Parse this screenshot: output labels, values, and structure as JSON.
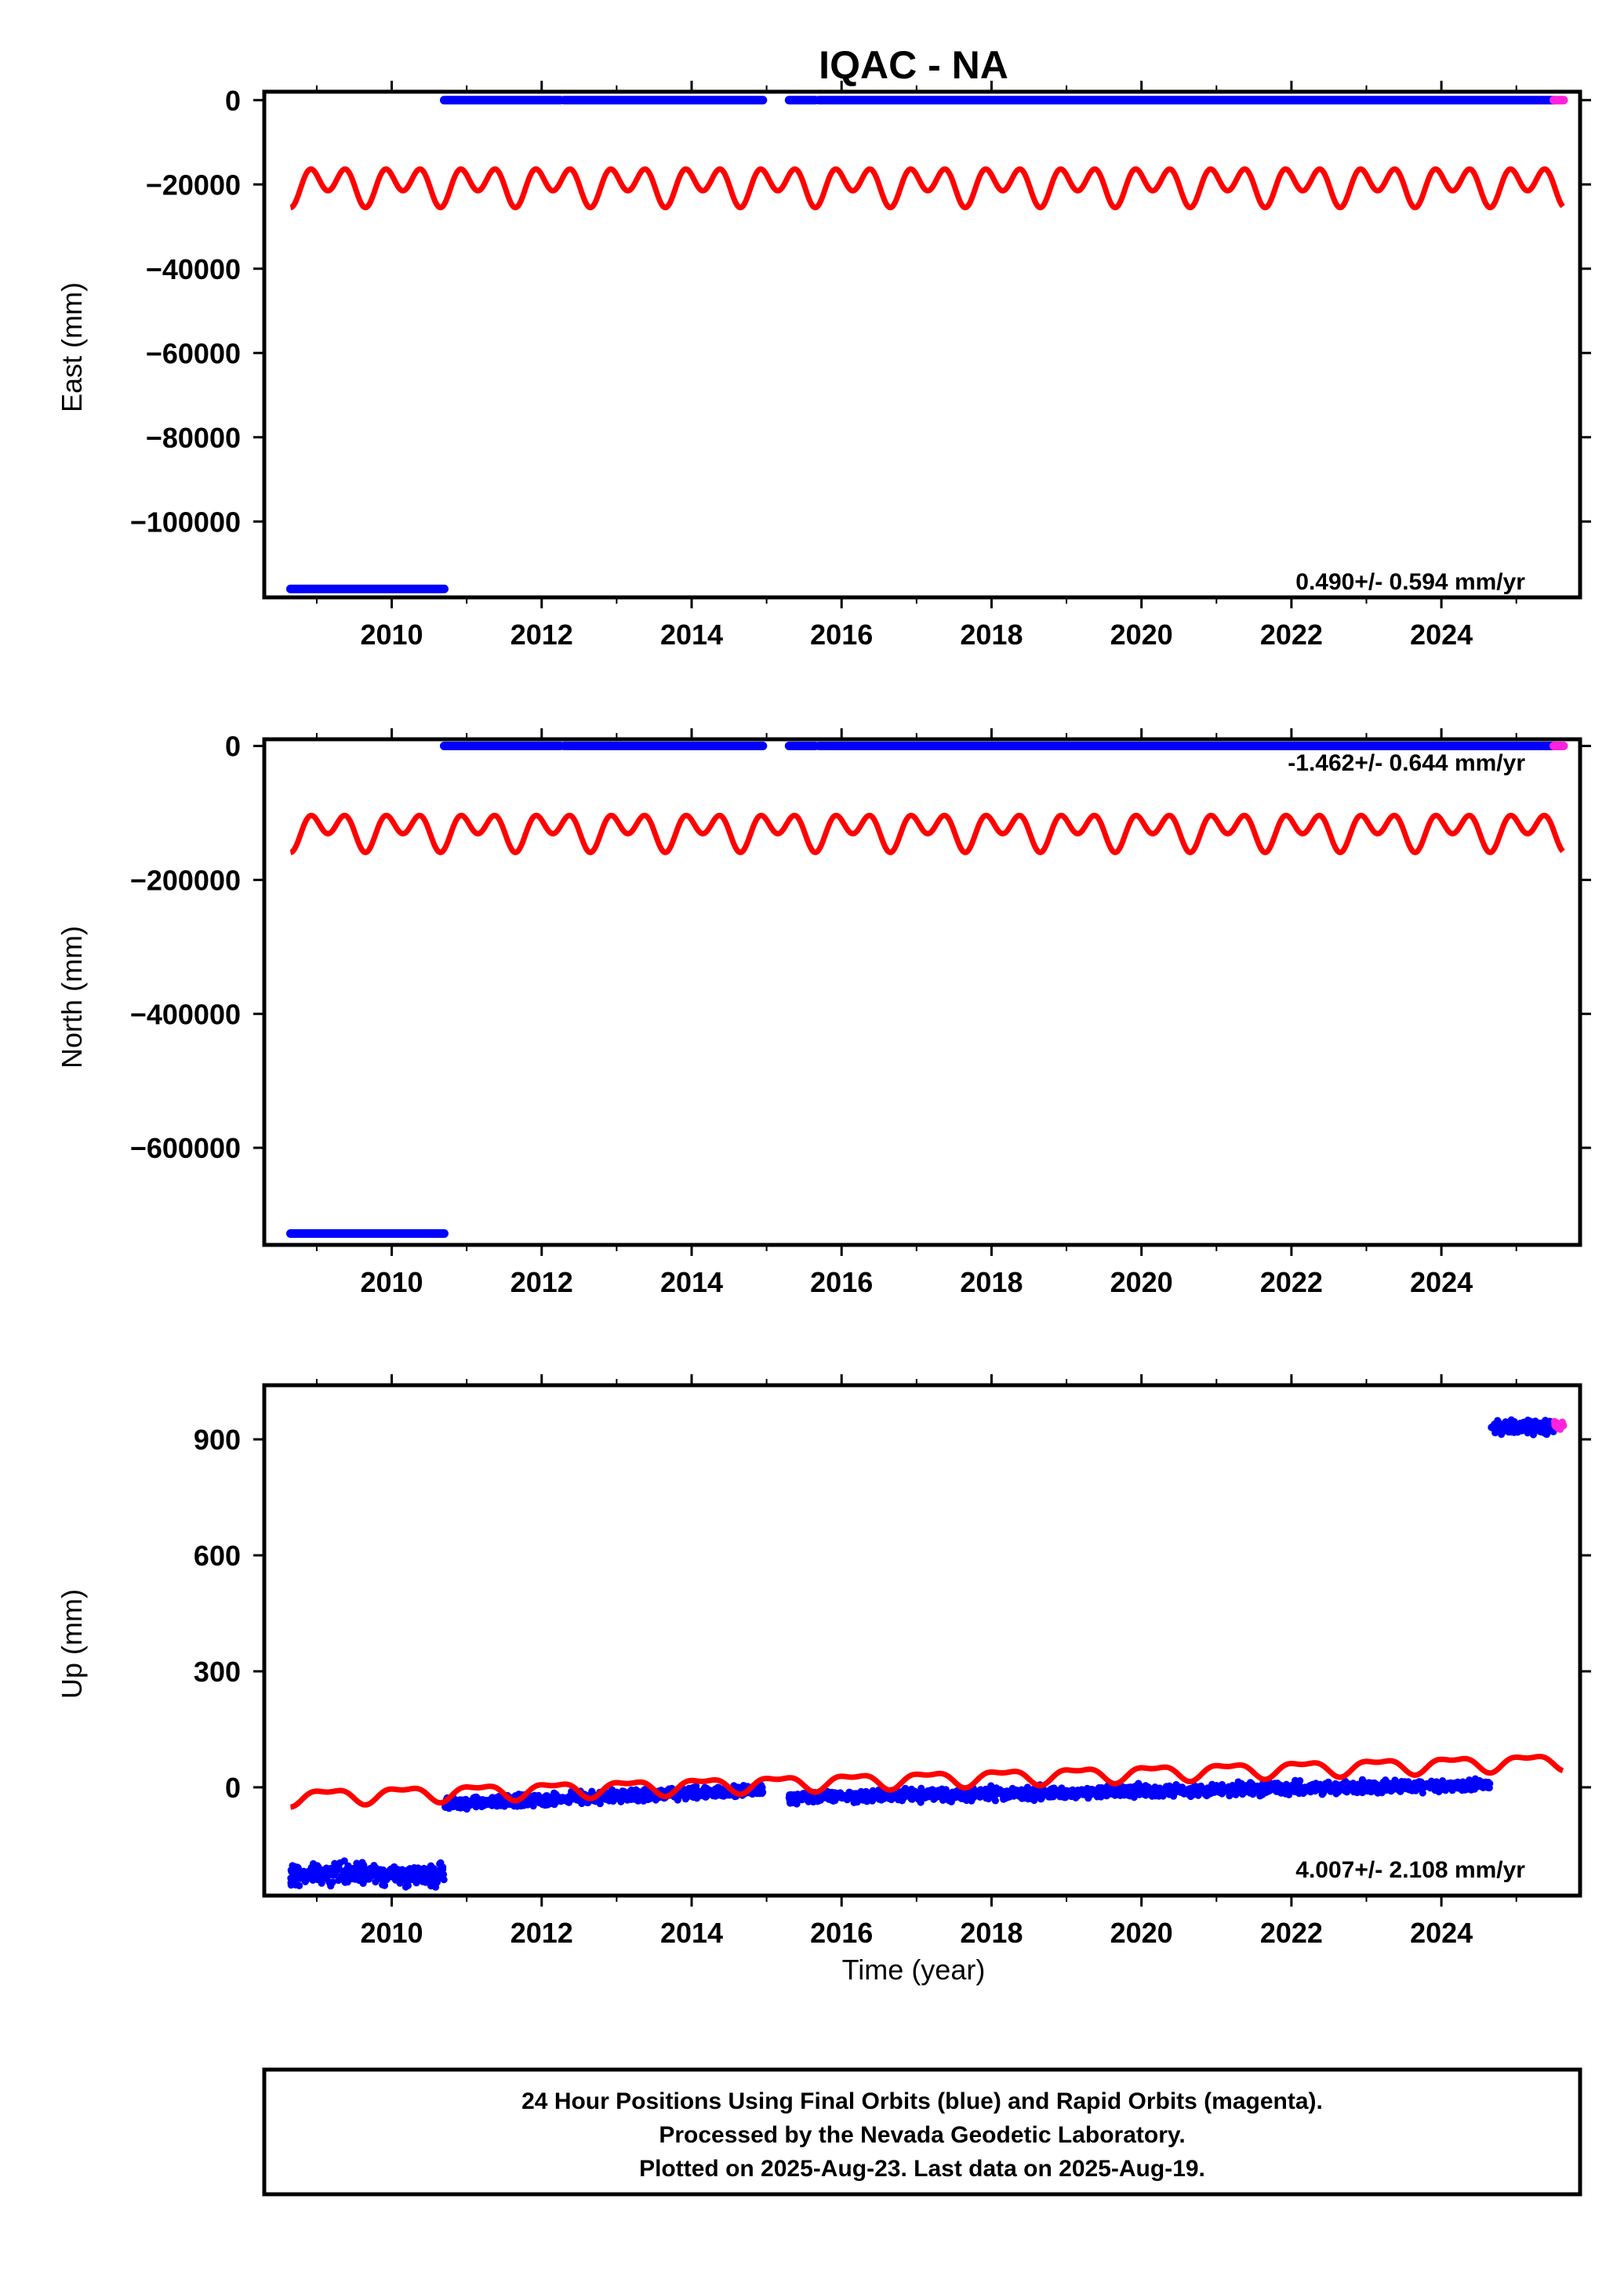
{
  "title": "IQAC - NA",
  "colors": {
    "final": "#0000ff",
    "rapid": "#ff22dd",
    "model": "#ff0000",
    "axis": "#000000"
  },
  "footer": {
    "lines": [
      "24 Hour Positions Using Final Orbits (blue) and Rapid Orbits (magenta).",
      "Processed by the Nevada Geodetic Laboratory.",
      "Plotted on 2025-Aug-23. Last data on 2025-Aug-19."
    ]
  },
  "chart_data": [
    {
      "type": "scatter",
      "component": "east",
      "ylabel": "East (mm)",
      "xlabel": "",
      "xlim": [
        2008.3,
        2025.85
      ],
      "ylim": [
        -118000,
        2000
      ],
      "x_ticks": [
        2010,
        2012,
        2014,
        2016,
        2018,
        2020,
        2022,
        2024
      ],
      "x_tick_labels": [
        "2010",
        "2012",
        "2014",
        "2016",
        "2018",
        "2020",
        "2022",
        "2024"
      ],
      "y_ticks": [
        0,
        -20000,
        -40000,
        -60000,
        -80000,
        -100000
      ],
      "y_tick_labels": [
        "0",
        "−20000",
        "−40000",
        "−60000",
        "−80000",
        "−100000"
      ],
      "rate_label": "0.490+/- 0.594 mm/yr",
      "rate_label_position": "bottom-right",
      "grid": false,
      "final_segments": [
        {
          "x_start": 2008.65,
          "x_end": 2010.7,
          "y": -116000
        },
        {
          "x_start": 2010.7,
          "x_end": 2012.25,
          "y": 0
        },
        {
          "x_start": 2012.3,
          "x_end": 2014.95,
          "y": 0
        },
        {
          "x_start": 2015.3,
          "x_end": 2015.65,
          "y": 0
        },
        {
          "x_start": 2015.7,
          "x_end": 2025.5,
          "y": 0
        }
      ],
      "rapid_segments": [
        {
          "x_start": 2025.5,
          "x_end": 2025.63,
          "y": 0
        }
      ],
      "seasonal_model": {
        "offset": -20000,
        "annual_amplitude": 2000,
        "semiannual_amplitude": 3500,
        "x_start": 2008.65,
        "x_end": 2025.62
      }
    },
    {
      "type": "scatter",
      "component": "north",
      "ylabel": "North (mm)",
      "xlabel": "",
      "xlim": [
        2008.3,
        2025.85
      ],
      "ylim": [
        -745000,
        10000
      ],
      "x_ticks": [
        2010,
        2012,
        2014,
        2016,
        2018,
        2020,
        2022,
        2024
      ],
      "x_tick_labels": [
        "2010",
        "2012",
        "2014",
        "2016",
        "2018",
        "2020",
        "2022",
        "2024"
      ],
      "y_ticks": [
        0,
        -200000,
        -400000,
        -600000
      ],
      "y_tick_labels": [
        "0",
        "−200000",
        "−400000",
        "−600000"
      ],
      "rate_label": "-1.462+/- 0.644 mm/yr",
      "rate_label_position": "top-right",
      "grid": false,
      "final_segments": [
        {
          "x_start": 2008.65,
          "x_end": 2010.7,
          "y": -728000
        },
        {
          "x_start": 2010.7,
          "x_end": 2012.25,
          "y": 0
        },
        {
          "x_start": 2012.3,
          "x_end": 2014.95,
          "y": 0
        },
        {
          "x_start": 2015.3,
          "x_end": 2015.65,
          "y": 0
        },
        {
          "x_start": 2015.7,
          "x_end": 2025.5,
          "y": 0
        }
      ],
      "rapid_segments": [
        {
          "x_start": 2025.5,
          "x_end": 2025.63,
          "y": 0
        }
      ],
      "seasonal_model": {
        "offset": -125000,
        "annual_amplitude": 14000,
        "semiannual_amplitude": 20000,
        "x_start": 2008.65,
        "x_end": 2025.62
      }
    },
    {
      "type": "scatter",
      "component": "up",
      "ylabel": "Up (mm)",
      "xlabel": "Time (year)",
      "xlim": [
        2008.3,
        2025.85
      ],
      "ylim": [
        -280,
        1040
      ],
      "x_ticks": [
        2010,
        2012,
        2014,
        2016,
        2018,
        2020,
        2022,
        2024
      ],
      "x_tick_labels": [
        "2010",
        "2012",
        "2014",
        "2016",
        "2018",
        "2020",
        "2022",
        "2024"
      ],
      "y_ticks": [
        900,
        600,
        300,
        0
      ],
      "y_tick_labels": [
        "900",
        "600",
        "300",
        "0"
      ],
      "rate_label": "4.007+/- 2.108 mm/yr",
      "rate_label_position": "bottom-right",
      "grid": false,
      "final_clusters": [
        {
          "x_start": 2008.65,
          "x_end": 2010.7,
          "y_mean": -225,
          "y_spread": 22,
          "trend": 0
        },
        {
          "x_start": 2010.7,
          "x_end": 2014.95,
          "y_mean": -25,
          "y_spread": 12,
          "trend": 9
        },
        {
          "x_start": 2015.3,
          "x_end": 2024.65,
          "y_mean": -10,
          "y_spread": 12,
          "trend": 3.5
        },
        {
          "x_start": 2024.65,
          "x_end": 2025.5,
          "y_mean": 932,
          "y_spread": 14,
          "trend": 0
        }
      ],
      "rapid_clusters": [
        {
          "x_start": 2025.5,
          "x_end": 2025.63,
          "y_mean": 938,
          "y_spread": 10,
          "trend": 0
        }
      ],
      "seasonal_model": {
        "offset": -25,
        "trend_per_year": 5.5,
        "annual_amplitude": 18,
        "semiannual_amplitude": 8,
        "x_start": 2008.65,
        "x_end": 2025.62
      }
    }
  ]
}
